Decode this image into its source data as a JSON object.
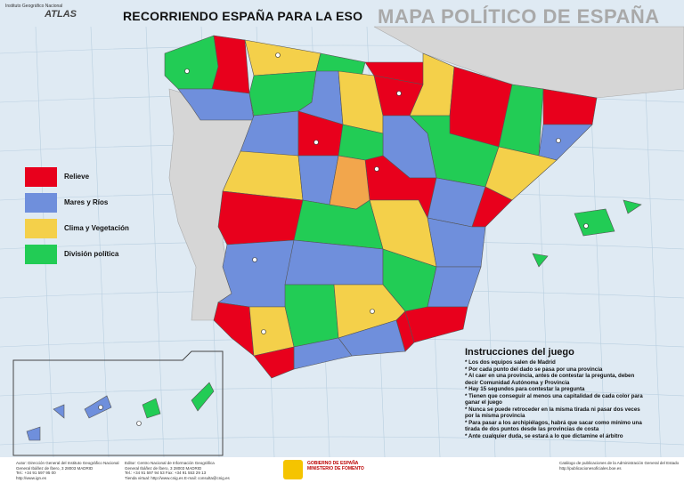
{
  "header": {
    "title": "RECORRIENDO ESPAÑA PARA LA ESO",
    "subtitle": "MAPA POLÍTICO DE ESPAÑA",
    "logo_small": "Instituto Geográfico Nacional",
    "logo": "ATLAS"
  },
  "legend": {
    "items": [
      {
        "label": "Relieve",
        "color": "#e8001c"
      },
      {
        "label": "Mares y Ríos",
        "color": "#6f8fdc"
      },
      {
        "label": "Clima y Vegetación",
        "color": "#f4d04a"
      },
      {
        "label": "División política",
        "color": "#22cc55"
      }
    ]
  },
  "instructions": {
    "title": "Instrucciones del juego",
    "items": [
      "* Los dos equipos salen de Madrid",
      "* Por cada punto del dado se pasa por una provincia",
      "* Al caer en una provincia, antes de contestar la pregunta, deben decir Comunidad Autónoma y Provincia",
      "* Hay 15 segundos para contestar la pregunta",
      "* Tienen que conseguir al menos una capitalidad de cada color para ganar el juego",
      "* Nunca se puede retroceder en la misma tirada ni pasar dos veces por la misma provincia",
      "* Para pasar a los archipiélagos, habrá que sacar como mínimo una tirada de dos puntos desde las provincias de costa",
      "* Ante cualquier duda, se estará a lo que dictamine el árbitro"
    ]
  },
  "footer": {
    "author": [
      "Autor: Dirección General del Instituto Geográfico Nacional",
      "General Ibáñez de Íbero, 3 28003 MADRID",
      "Tel.: +34 91 597 95 00",
      "http://www.ign.es"
    ],
    "editor": [
      "Editor: Centro Nacional de Información Geográfica",
      "General Ibáñez de Íbero, 3 28003 MADRID",
      "Tel.: +34 91 597 94 53 Fax: +34 91 553 29 13",
      "Tienda virtual: http://www.cnig.es E-mail: consulta@cnig.es"
    ],
    "government": [
      "GOBIERNO DE ESPAÑA",
      "MINISTERIO DE FOMENTO"
    ],
    "catalog": [
      "Catálogo de publicaciones de la Administración General del Estado",
      "http://publicacionesoficiales.boe.es"
    ]
  }
}
